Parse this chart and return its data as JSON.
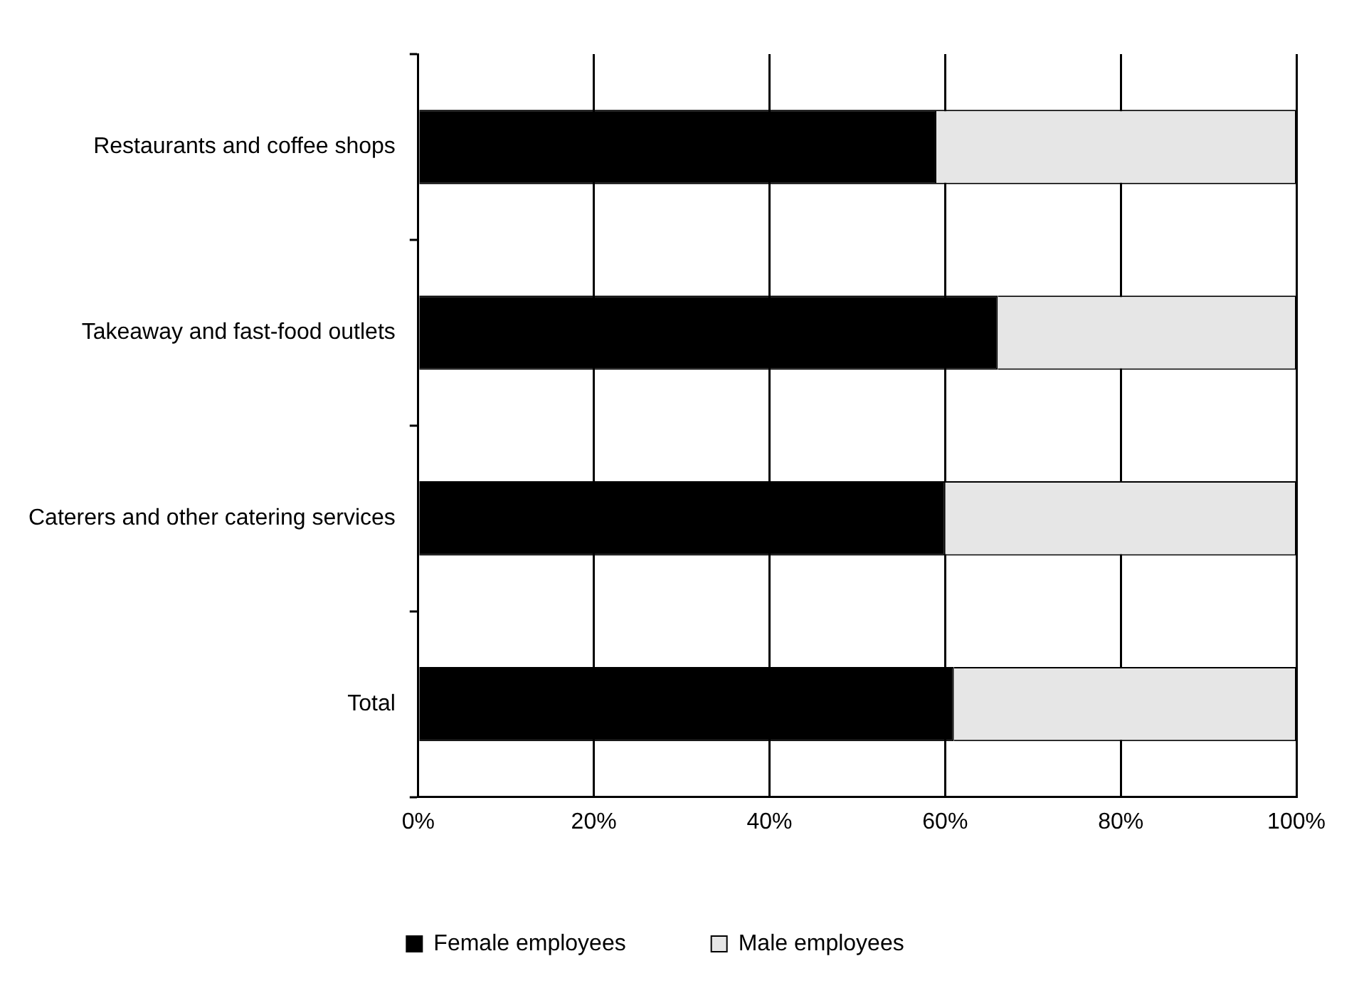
{
  "chart_data": {
    "type": "bar",
    "orientation": "horizontal",
    "stacked": true,
    "categories": [
      "Restaurants and coffee shops",
      "Takeaway and fast-food outlets",
      "Caterers and other catering services",
      "Total"
    ],
    "series": [
      {
        "name": "Female employees",
        "color": "#000000",
        "values": [
          59,
          66,
          60,
          61
        ]
      },
      {
        "name": "Male employees",
        "color": "#e6e6e6",
        "values": [
          41,
          34,
          40,
          39
        ]
      }
    ],
    "xlim": [
      0,
      100
    ],
    "xticks": [
      {
        "value": 0,
        "label": "0%"
      },
      {
        "value": 20,
        "label": "20%"
      },
      {
        "value": 40,
        "label": "40%"
      },
      {
        "value": 60,
        "label": "60%"
      },
      {
        "value": 80,
        "label": "80%"
      },
      {
        "value": 100,
        "label": "100%"
      }
    ],
    "grid": "x",
    "legend": "bottom"
  }
}
